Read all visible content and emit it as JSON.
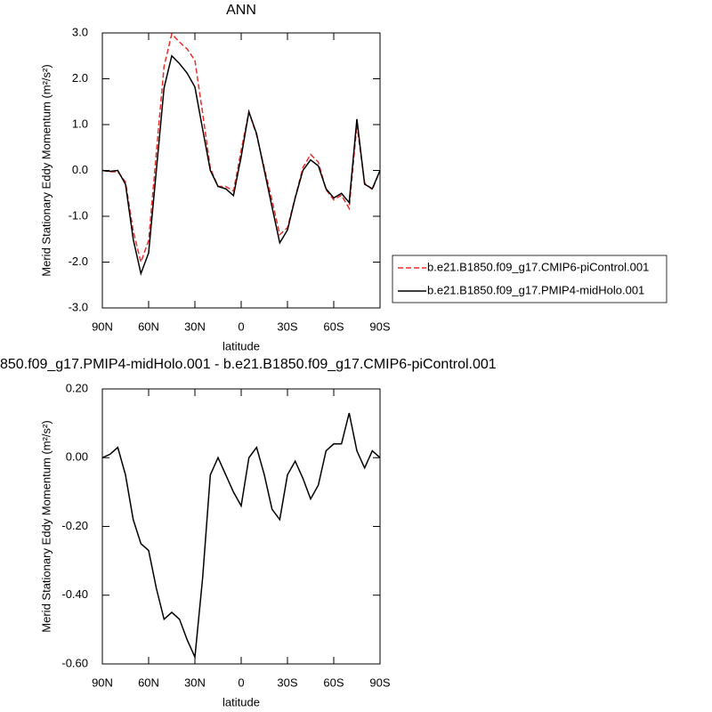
{
  "chart_data": [
    {
      "type": "line",
      "title": "ANN",
      "xlabel": "latitude",
      "ylabel": "Merid Stationary Eddy Momentum (m²/s²)",
      "x": [
        90,
        85,
        80,
        75,
        70,
        65,
        60,
        55,
        50,
        45,
        40,
        35,
        30,
        25,
        20,
        15,
        10,
        5,
        0,
        -5,
        -10,
        -15,
        -20,
        -25,
        -30,
        -35,
        -40,
        -45,
        -50,
        -55,
        -60,
        -65,
        -70,
        -75,
        -80,
        -85,
        -90
      ],
      "series": [
        {
          "name": "b.e21.B1850.f09_g17.CMIP6-piControl.001",
          "color": "#e8302a",
          "linestyle": "dashed",
          "values": [
            0.0,
            -0.03,
            -0.03,
            -0.25,
            -1.32,
            -2.0,
            -1.53,
            0.38,
            2.27,
            2.98,
            2.8,
            2.65,
            2.4,
            1.25,
            0.05,
            -0.35,
            -0.35,
            -0.45,
            0.44,
            1.28,
            0.77,
            0.05,
            -0.65,
            -1.4,
            -1.25,
            -0.59,
            0.06,
            0.35,
            0.18,
            -0.42,
            -0.64,
            -0.54,
            -0.83,
            1.0,
            -0.27,
            -0.42,
            0.0
          ]
        },
        {
          "name": "b.e21.B1850.f09_g17.PMIP4-midHolo.001",
          "color": "#000000",
          "linestyle": "solid",
          "values": [
            0.0,
            -0.02,
            0.0,
            -0.3,
            -1.5,
            -2.25,
            -1.8,
            0.0,
            1.8,
            2.5,
            2.33,
            2.12,
            1.82,
            0.9,
            0.0,
            -0.35,
            -0.4,
            -0.55,
            0.3,
            1.28,
            0.8,
            0.0,
            -0.8,
            -1.58,
            -1.3,
            -0.6,
            0.0,
            0.23,
            0.1,
            -0.4,
            -0.6,
            -0.5,
            -0.7,
            1.12,
            -0.3,
            -0.4,
            0.0
          ]
        }
      ],
      "xlim": [
        90,
        -90
      ],
      "xticks": [
        {
          "value": 90,
          "label": "90N"
        },
        {
          "value": 60,
          "label": "60N"
        },
        {
          "value": 30,
          "label": "30N"
        },
        0,
        {
          "value": -30,
          "label": "30S"
        },
        {
          "value": -60,
          "label": "60S"
        },
        {
          "value": -90,
          "label": "90S"
        }
      ],
      "ylim": [
        -3,
        3
      ],
      "yticks": [
        {
          "value": -3,
          "label": "-3.0"
        },
        {
          "value": -2,
          "label": "-2.0"
        },
        {
          "value": -1,
          "label": "-1.0"
        },
        {
          "value": 0,
          "label": "0.0"
        },
        {
          "value": 1,
          "label": "1.0"
        },
        {
          "value": 2,
          "label": "2.0"
        },
        {
          "value": 3,
          "label": "3.0"
        }
      ],
      "legend": "outside-right"
    },
    {
      "type": "line",
      "title": "850.f09_g17.PMIP4-midHolo.001 - b.e21.B1850.f09_g17.CMIP6-piControl.001",
      "xlabel": "latitude",
      "ylabel": "Merid Stationary Eddy Momentum (m²/s²)",
      "x": [
        90,
        85,
        80,
        75,
        70,
        65,
        60,
        55,
        50,
        45,
        40,
        35,
        30,
        25,
        20,
        15,
        10,
        5,
        0,
        -5,
        -10,
        -15,
        -20,
        -25,
        -30,
        -35,
        -40,
        -45,
        -50,
        -55,
        -60,
        -65,
        -70,
        -75,
        -80,
        -85,
        -90
      ],
      "series": [
        {
          "color": "#000000",
          "linestyle": "solid",
          "values": [
            0.0,
            0.01,
            0.03,
            -0.05,
            -0.18,
            -0.25,
            -0.27,
            -0.38,
            -0.47,
            -0.45,
            -0.47,
            -0.53,
            -0.58,
            -0.35,
            -0.05,
            0.0,
            -0.05,
            -0.1,
            -0.14,
            0.0,
            0.03,
            -0.05,
            -0.15,
            -0.18,
            -0.05,
            -0.01,
            -0.06,
            -0.12,
            -0.08,
            0.02,
            0.04,
            0.04,
            0.13,
            0.02,
            -0.03,
            0.02,
            0.0
          ]
        }
      ],
      "xlim": [
        90,
        -90
      ],
      "xticks": [
        {
          "value": 90,
          "label": "90N"
        },
        {
          "value": 60,
          "label": "60N"
        },
        {
          "value": 30,
          "label": "30N"
        },
        0,
        {
          "value": -30,
          "label": "30S"
        },
        {
          "value": -60,
          "label": "60S"
        },
        {
          "value": -90,
          "label": "90S"
        }
      ],
      "ylim": [
        -0.6,
        0.2
      ],
      "yticks": [
        {
          "value": -0.6,
          "label": "-0.60"
        },
        {
          "value": -0.4,
          "label": "-0.40"
        },
        {
          "value": -0.2,
          "label": "-0.20"
        },
        {
          "value": 0,
          "label": "0.00"
        },
        {
          "value": 0.2,
          "label": "0.20"
        }
      ]
    }
  ]
}
